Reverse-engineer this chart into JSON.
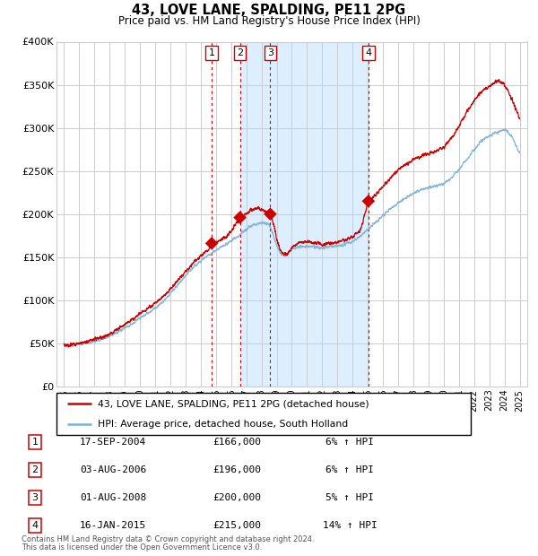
{
  "title": "43, LOVE LANE, SPALDING, PE11 2PG",
  "subtitle": "Price paid vs. HM Land Registry's House Price Index (HPI)",
  "legend_line1": "43, LOVE LANE, SPALDING, PE11 2PG (detached house)",
  "legend_line2": "HPI: Average price, detached house, South Holland",
  "footer1": "Contains HM Land Registry data © Crown copyright and database right 2024.",
  "footer2": "This data is licensed under the Open Government Licence v3.0.",
  "transactions": [
    {
      "num": 1,
      "date": "17-SEP-2004",
      "price": 166000,
      "pct": "6%",
      "dir": "↑"
    },
    {
      "num": 2,
      "date": "03-AUG-2006",
      "price": 196000,
      "pct": "6%",
      "dir": "↑"
    },
    {
      "num": 3,
      "date": "01-AUG-2008",
      "price": 200000,
      "pct": "5%",
      "dir": "↑"
    },
    {
      "num": 4,
      "date": "16-JAN-2015",
      "price": 215000,
      "pct": "14%",
      "dir": "↑"
    }
  ],
  "transaction_dates_decimal": [
    2004.72,
    2006.58,
    2008.58,
    2015.04
  ],
  "transaction_prices": [
    166000,
    196000,
    200000,
    215000
  ],
  "shaded_region": [
    2006.58,
    2015.04
  ],
  "ylim": [
    0,
    400000
  ],
  "yticks": [
    0,
    50000,
    100000,
    150000,
    200000,
    250000,
    300000,
    350000,
    400000
  ],
  "ytick_labels": [
    "£0",
    "£50K",
    "£100K",
    "£150K",
    "£200K",
    "£250K",
    "£300K",
    "£350K",
    "£400K"
  ],
  "xlim_start": 1994.5,
  "xlim_end": 2025.5,
  "red_color": "#cc0000",
  "blue_color": "#7ab0d4",
  "shaded_color": "#ddeeff",
  "grid_color": "#cccccc",
  "bg_color": "#ffffff"
}
